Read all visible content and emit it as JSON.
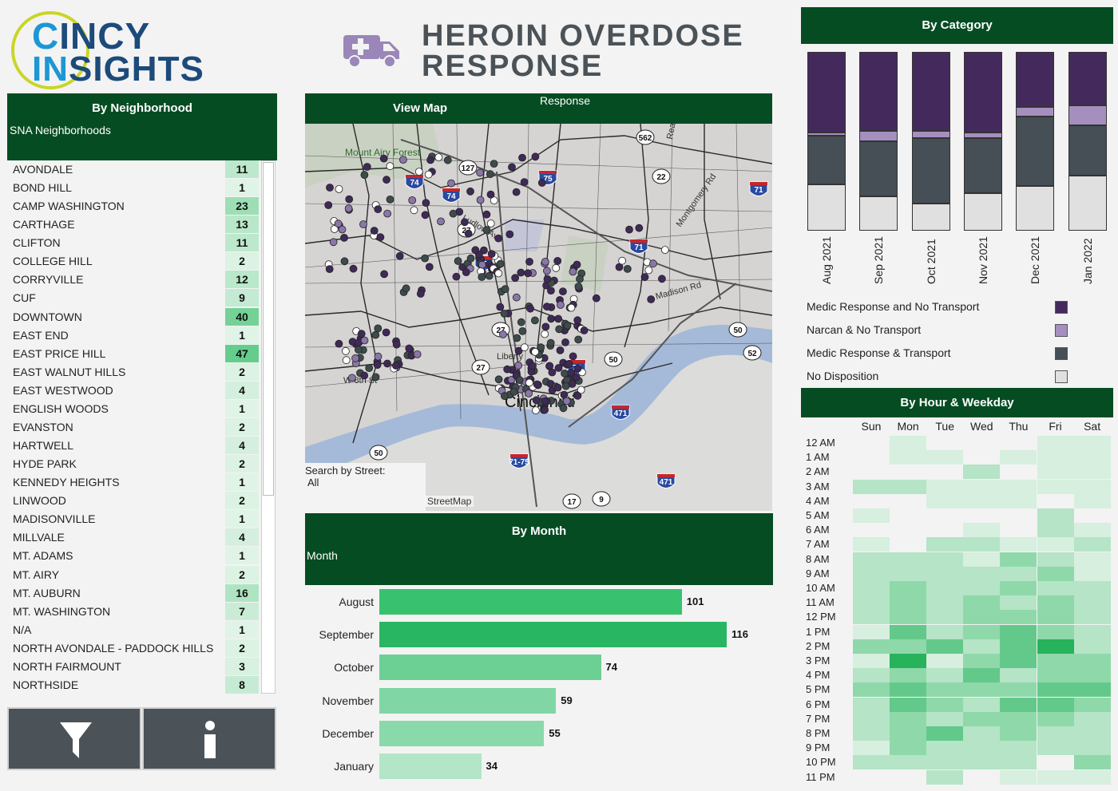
{
  "logo": {
    "line1_c": "C",
    "line1_rest": "INCY",
    "line2_in": "IN",
    "line2_rest": "SIGHTS"
  },
  "title": {
    "line1": "HEROIN OVERDOSE",
    "line2": "RESPONSE"
  },
  "colors": {
    "dark_green": "#064c22",
    "purple": "#442a5c",
    "light_purple": "#a58fbf",
    "slate": "#454f55",
    "light_gray": "#d9d9d9"
  },
  "neighborhood_panel": {
    "title": "By Neighborhood",
    "filter_label": "SNA Neighborhoods",
    "rows": [
      {
        "name": "AVONDALE",
        "count": "11"
      },
      {
        "name": "BOND HILL",
        "count": "1"
      },
      {
        "name": "CAMP WASHINGTON",
        "count": "23"
      },
      {
        "name": "CARTHAGE",
        "count": "13"
      },
      {
        "name": "CLIFTON",
        "count": "11"
      },
      {
        "name": "COLLEGE HILL",
        "count": "2"
      },
      {
        "name": "CORRYVILLE",
        "count": "12"
      },
      {
        "name": "CUF",
        "count": "9"
      },
      {
        "name": "DOWNTOWN",
        "count": "40"
      },
      {
        "name": "EAST END",
        "count": "1"
      },
      {
        "name": "EAST PRICE HILL",
        "count": "47"
      },
      {
        "name": "EAST WALNUT HILLS",
        "count": "2"
      },
      {
        "name": "EAST WESTWOOD",
        "count": "4"
      },
      {
        "name": "ENGLISH WOODS",
        "count": "1"
      },
      {
        "name": "EVANSTON",
        "count": "2"
      },
      {
        "name": "HARTWELL",
        "count": "4"
      },
      {
        "name": "HYDE PARK",
        "count": "2"
      },
      {
        "name": "KENNEDY HEIGHTS",
        "count": "1"
      },
      {
        "name": "LINWOOD",
        "count": "2"
      },
      {
        "name": "MADISONVILLE",
        "count": "1"
      },
      {
        "name": "MILLVALE",
        "count": "4"
      },
      {
        "name": "MT. ADAMS",
        "count": "1"
      },
      {
        "name": "MT. AIRY",
        "count": "2"
      },
      {
        "name": "MT. AUBURN",
        "count": "16"
      },
      {
        "name": "MT. WASHINGTON",
        "count": "7"
      },
      {
        "name": "N/A",
        "count": "1"
      },
      {
        "name": "NORTH AVONDALE - PADDOCK HILLS",
        "count": "2"
      },
      {
        "name": "NORTH FAIRMOUNT",
        "count": "3"
      },
      {
        "name": "NORTHSIDE",
        "count": "8"
      }
    ]
  },
  "buttons": {
    "filter_icon": "funnel-icon",
    "info_icon": "info-icon"
  },
  "map_panel": {
    "title": "View Map",
    "response_label": "Response",
    "search_label": "Search by Street:",
    "search_value": "All",
    "attribution": "StreetMap",
    "place_labels": {
      "mount_airy": "Mount Airy Forest",
      "cincinnati": "Cincinnati",
      "ludlow": "Ludlow Ave",
      "liberty": "Liberty",
      "montgomery": "Montgomery Rd",
      "w8": "W 8th St",
      "madison": "Madison Rd",
      "reading": "Read"
    },
    "shields": {
      "i74a": "74",
      "i74b": "74",
      "i75": "75",
      "i71a": "71",
      "i71b": "71",
      "i471a": "471",
      "i471b": "471",
      "i7175": "71-75",
      "i75b": "75",
      "us27a": "27",
      "us27b": "27",
      "us27c": "27",
      "r127": "127",
      "r562": "562",
      "r50a": "50",
      "r50b": "50",
      "r50c": "50",
      "r52": "52",
      "r22": "22",
      "r17": "17",
      "r9": "9",
      "i74c": "74"
    }
  },
  "month_panel": {
    "title": "By Month",
    "filter_label": "Month",
    "chart_data": {
      "type": "bar",
      "orientation": "horizontal",
      "categories": [
        "August",
        "September",
        "October",
        "November",
        "December",
        "January"
      ],
      "values": [
        101,
        116,
        74,
        59,
        55,
        34
      ],
      "title": "By Month"
    }
  },
  "category_panel": {
    "title": "By Category",
    "chart_data": {
      "type": "bar",
      "stacked": true,
      "categories": [
        "Aug 2021",
        "Sep 2021",
        "Oct 2021",
        "Nov 2021",
        "Dec 2021",
        "Jan 2022"
      ],
      "series": [
        {
          "name": "No Disposition",
          "values": [
            26,
            19,
            15,
            21,
            25,
            31
          ]
        },
        {
          "name": "Medic Response & Transport",
          "values": [
            27,
            31,
            37,
            31,
            39,
            28
          ]
        },
        {
          "name": "Narcan & No Transport",
          "values": [
            2,
            6,
            4,
            3,
            5,
            11
          ]
        },
        {
          "name": "Medic Response and No Transport",
          "values": [
            45,
            44,
            44,
            45,
            31,
            30
          ]
        }
      ],
      "ylim": [
        0,
        100
      ]
    },
    "legend": [
      {
        "label": "Medic Response and No Transport",
        "color": "#442a5c"
      },
      {
        "label": "Narcan & No Transport",
        "color": "#a58fbf"
      },
      {
        "label": "Medic Response & Transport",
        "color": "#454f55"
      },
      {
        "label": "No Disposition",
        "color": "#e0e0e0"
      }
    ]
  },
  "heatmap_panel": {
    "title": "By Hour & Weekday",
    "chart_data": {
      "type": "heatmap",
      "days": [
        "Sun",
        "Mon",
        "Tue",
        "Wed",
        "Thu",
        "Fri",
        "Sat"
      ],
      "hours": [
        "12 AM",
        "1 AM",
        "2 AM",
        "3 AM",
        "4 AM",
        "5 AM",
        "6 AM",
        "7 AM",
        "8 AM",
        "9 AM",
        "10 AM",
        "11 AM",
        "12 PM",
        "1 PM",
        "2 PM",
        "3 PM",
        "4 PM",
        "5 PM",
        "6 PM",
        "7 PM",
        "8 PM",
        "9 PM",
        "10 PM",
        "11 PM"
      ],
      "values": [
        [
          0,
          1,
          0,
          0,
          0,
          1,
          1
        ],
        [
          0,
          1,
          1,
          0,
          1,
          1,
          1
        ],
        [
          0,
          0,
          0,
          2,
          0,
          1,
          1
        ],
        [
          2,
          2,
          1,
          1,
          1,
          1,
          1
        ],
        [
          0,
          0,
          1,
          1,
          1,
          0,
          1
        ],
        [
          1,
          0,
          0,
          0,
          0,
          2,
          0
        ],
        [
          0,
          0,
          0,
          1,
          0,
          2,
          1
        ],
        [
          1,
          0,
          2,
          2,
          1,
          1,
          2
        ],
        [
          2,
          2,
          2,
          1,
          3,
          2,
          1
        ],
        [
          2,
          2,
          2,
          2,
          2,
          3,
          1
        ],
        [
          2,
          3,
          2,
          2,
          3,
          2,
          2
        ],
        [
          2,
          3,
          2,
          3,
          2,
          3,
          2
        ],
        [
          2,
          3,
          2,
          3,
          3,
          3,
          2
        ],
        [
          1,
          4,
          2,
          3,
          4,
          3,
          2
        ],
        [
          3,
          3,
          4,
          2,
          4,
          5,
          2
        ],
        [
          1,
          5,
          1,
          3,
          4,
          3,
          3
        ],
        [
          2,
          3,
          2,
          4,
          2,
          3,
          3
        ],
        [
          3,
          4,
          3,
          3,
          3,
          4,
          4
        ],
        [
          2,
          4,
          3,
          2,
          4,
          4,
          3
        ],
        [
          2,
          3,
          2,
          3,
          3,
          3,
          2
        ],
        [
          2,
          3,
          4,
          2,
          3,
          2,
          2
        ],
        [
          1,
          3,
          2,
          2,
          2,
          2,
          2
        ],
        [
          2,
          2,
          2,
          2,
          2,
          0,
          3
        ],
        [
          0,
          0,
          2,
          0,
          1,
          1,
          1
        ]
      ]
    }
  }
}
